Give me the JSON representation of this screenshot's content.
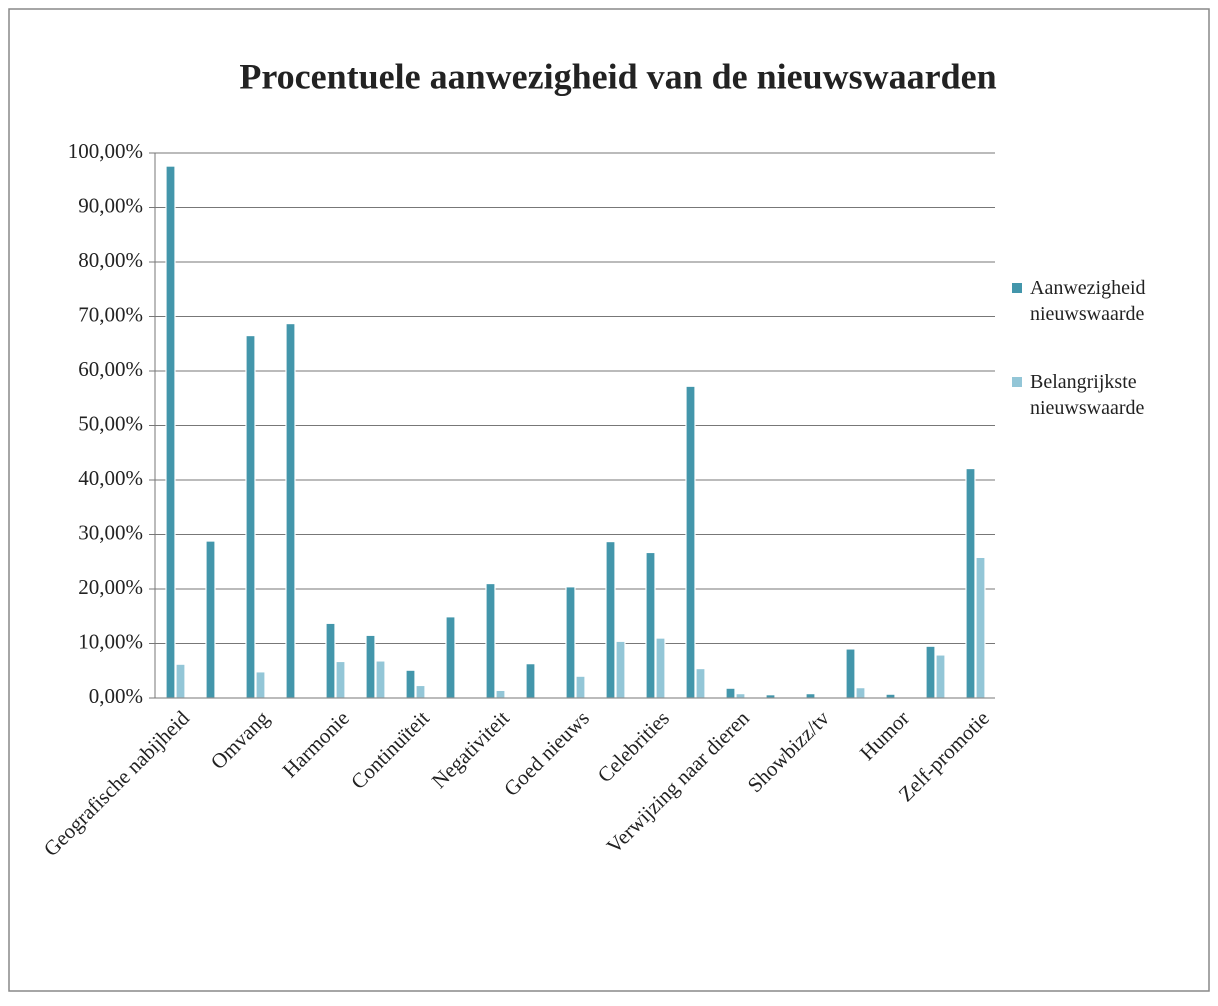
{
  "chart_data": {
    "type": "bar",
    "title": "Procentuele aanwezigheid van de nieuwswaarden",
    "categories": [
      "Geografische nabijheid",
      null,
      "Omvang",
      null,
      "Harmonie",
      null,
      "Continuïteit",
      null,
      "Negativiteit",
      null,
      "Goed nieuws",
      null,
      "Celebrities",
      null,
      "Verwijzing naar dieren",
      null,
      "Showbizz/tv",
      null,
      "Humor",
      null,
      "Zelf-promotie"
    ],
    "series": [
      {
        "name": "Aanwezigheid nieuwswaarde",
        "color": "#4396ab",
        "values": [
          97.6,
          28.8,
          66.5,
          68.7,
          13.7,
          11.5,
          5.1,
          14.9,
          21.0,
          6.3,
          20.4,
          28.7,
          26.7,
          57.2,
          1.8,
          0.6,
          0.8,
          9.0,
          0.7,
          9.5,
          42.1
        ]
      },
      {
        "name": "Belangrijkste nieuwswaarde",
        "color": "#93c6d7",
        "values": [
          6.2,
          0,
          4.8,
          0,
          6.7,
          6.8,
          2.3,
          0,
          1.4,
          0,
          4.0,
          10.4,
          11.0,
          5.4,
          0.8,
          0,
          0,
          1.9,
          0,
          7.9,
          25.8
        ]
      }
    ],
    "ylim": [
      0,
      100
    ],
    "yticks": [
      {
        "value": 0,
        "label": "0,00%"
      },
      {
        "value": 10,
        "label": "10,00%"
      },
      {
        "value": 20,
        "label": "20,00%"
      },
      {
        "value": 30,
        "label": "30,00%"
      },
      {
        "value": 40,
        "label": "40,00%"
      },
      {
        "value": 50,
        "label": "50,00%"
      },
      {
        "value": 60,
        "label": "60,00%"
      },
      {
        "value": 70,
        "label": "70,00%"
      },
      {
        "value": 80,
        "label": "80,00%"
      },
      {
        "value": 90,
        "label": "90,00%"
      },
      {
        "value": 100,
        "label": "100,00%"
      }
    ],
    "grid": true
  }
}
